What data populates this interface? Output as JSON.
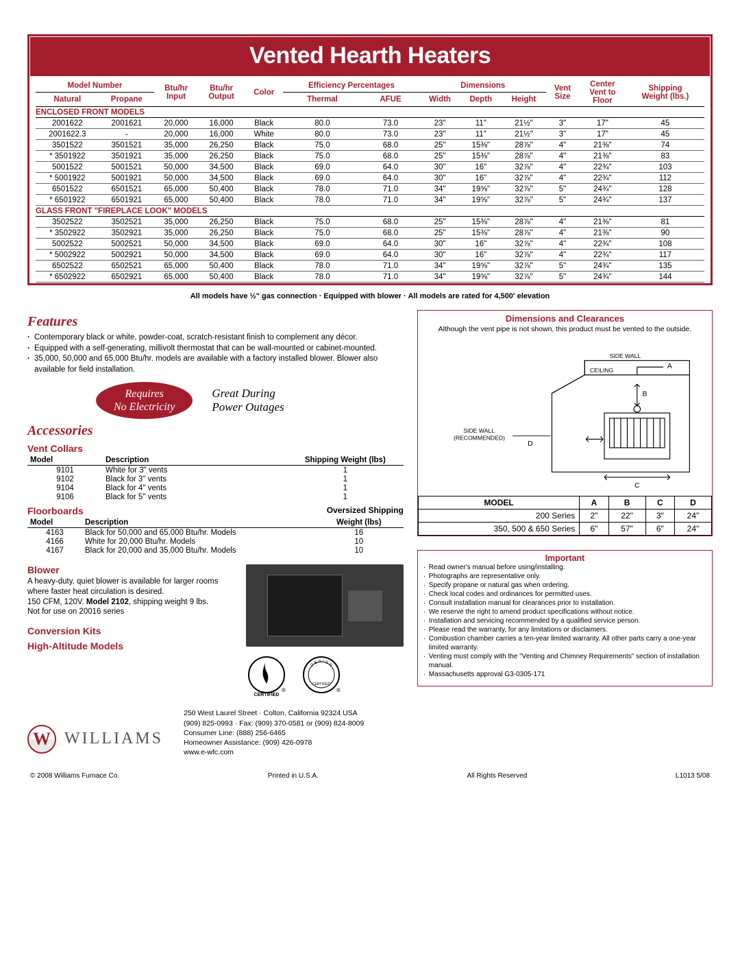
{
  "title": "Vented Hearth Heaters",
  "spec_table": {
    "headers_row1": [
      "Model Number",
      "",
      "Btu/hr",
      "Btu/hr",
      "Color",
      "Efficiency Percentages",
      "",
      "Dimensions",
      "",
      "",
      "Vent",
      "Center Vent to Floor",
      "Shipping Weight (lbs.)"
    ],
    "headers_row2": [
      "Natural",
      "Propane",
      "Input",
      "Output",
      "",
      "Thermal",
      "AFUE",
      "Width",
      "Depth",
      "Height",
      "Size",
      "",
      ""
    ],
    "section1_label": "ENCLOSED FRONT MODELS",
    "section1_rows": [
      [
        "2001622",
        "2001621",
        "20,000",
        "16,000",
        "Black",
        "80.0",
        "73.0",
        "23\"",
        "11\"",
        "21½\"",
        "3\"",
        "17\"",
        "45"
      ],
      [
        "2001622.3",
        "-",
        "20,000",
        "16,000",
        "White",
        "80.0",
        "73.0",
        "23\"",
        "11\"",
        "21½\"",
        "3\"",
        "17\"",
        "45"
      ],
      [
        "3501522",
        "3501521",
        "35,000",
        "26,250",
        "Black",
        "75.0",
        "68.0",
        "25\"",
        "15⅜\"",
        "28⅞\"",
        "4\"",
        "21⅜\"",
        "74"
      ],
      [
        "* 3501922",
        "3501921",
        "35,000",
        "26,250",
        "Black",
        "75.0",
        "68.0",
        "25\"",
        "15⅜\"",
        "28⅞\"",
        "4\"",
        "21⅜\"",
        "83"
      ],
      [
        "5001522",
        "5001521",
        "50,000",
        "34,500",
        "Black",
        "69.0",
        "64.0",
        "30\"",
        "16\"",
        "32⅞\"",
        "4\"",
        "22¾\"",
        "103"
      ],
      [
        "* 5001922",
        "5001921",
        "50,000",
        "34,500",
        "Black",
        "69.0",
        "64.0",
        "30\"",
        "16\"",
        "32⅞\"",
        "4\"",
        "22¾\"",
        "112"
      ],
      [
        "6501522",
        "6501521",
        "65,000",
        "50,400",
        "Black",
        "78.0",
        "71.0",
        "34\"",
        "19⅝\"",
        "32⅞\"",
        "5\"",
        "24¾\"",
        "128"
      ],
      [
        "* 6501922",
        "6501921",
        "65,000",
        "50,400",
        "Black",
        "78.0",
        "71.0",
        "34\"",
        "19⅝\"",
        "32⅞\"",
        "5\"",
        "24¾\"",
        "137"
      ]
    ],
    "section2_label": "GLASS FRONT \"FIREPLACE LOOK\" MODELS",
    "section2_rows": [
      [
        "3502522",
        "3502521",
        "35,000",
        "26,250",
        "Black",
        "75.0",
        "68.0",
        "25\"",
        "15⅜\"",
        "28⅞\"",
        "4\"",
        "21⅜\"",
        "81"
      ],
      [
        "* 3502922",
        "3502921",
        "35,000",
        "26,250",
        "Black",
        "75.0",
        "68.0",
        "25\"",
        "15⅜\"",
        "28⅞\"",
        "4\"",
        "21⅜\"",
        "90"
      ],
      [
        "5002522",
        "5002521",
        "50,000",
        "34,500",
        "Black",
        "69.0",
        "64.0",
        "30\"",
        "16\"",
        "32⅞\"",
        "4\"",
        "22¾\"",
        "108"
      ],
      [
        "* 5002922",
        "5002921",
        "50,000",
        "34,500",
        "Black",
        "69.0",
        "64.0",
        "30\"",
        "16\"",
        "32⅞\"",
        "4\"",
        "22¾\"",
        "117"
      ],
      [
        "6502522",
        "6502521",
        "65,000",
        "50,400",
        "Black",
        "78.0",
        "71.0",
        "34\"",
        "19⅝\"",
        "32⅞\"",
        "5\"",
        "24¾\"",
        "135"
      ],
      [
        "* 6502922",
        "6502921",
        "65,000",
        "50,400",
        "Black",
        "78.0",
        "71.0",
        "34\"",
        "19⅝\"",
        "32⅞\"",
        "5\"",
        "24¾\"",
        "144"
      ]
    ]
  },
  "note_line": "All models have ½\" gas connection   ·   Equipped with blower   ·   All models are rated for 4,500' elevation",
  "features_heading": "Features",
  "features": [
    "Contemporary black or white, powder-coat, scratch-resistant finish to complement any décor.",
    "Equipped with a self-generating, millivolt thermostat that can be wall-mounted or cabinet-mounted.",
    "35,000, 50,000 and 65,000 Btu/hr. models are available with a factory installed blower. Blower also available for field installation."
  ],
  "pill_line1": "Requires",
  "pill_line2": "No Electricity",
  "pill_caption1": "Great During",
  "pill_caption2": "Power Outages",
  "accessories_heading": "Accessories",
  "vent_collars": {
    "title": "Vent Collars",
    "headers": [
      "Model",
      "Description",
      "Shipping Weight (lbs)"
    ],
    "rows": [
      [
        "9101",
        "White for 3\" vents",
        "1"
      ],
      [
        "9102",
        "Black for 3\" vents",
        "1"
      ],
      [
        "9104",
        "Black for 4\" vents",
        "1"
      ],
      [
        "9106",
        "Black for 5\" vents",
        "1"
      ]
    ]
  },
  "floorboards": {
    "title": "Floorboards",
    "hdr_right1": "Oversized Shipping",
    "hdr_right2": "Weight (lbs)",
    "headers": [
      "Model",
      "Description"
    ],
    "rows": [
      [
        "4163",
        "Black for 50,000 and 65,000 Btu/hr. Models",
        "16"
      ],
      [
        "4166",
        "White for 20,000 Btu/hr. Models",
        "10"
      ],
      [
        "4167",
        "Black for 20,000 and 35,000 Btu/hr. Models",
        "10"
      ]
    ]
  },
  "blower": {
    "title": "Blower",
    "p1": "A heavy-duty, quiet blower is available for larger rooms where faster heat circulation is desired.",
    "p2a": "150 CFM, 120V. ",
    "p2b": "Model 2102",
    "p2c": ", shipping weight 9 lbs.",
    "p3": "Not for use on 20016 series"
  },
  "conversion_title": "Conversion Kits",
  "highalt_title": "High-Altitude Models",
  "dimensions": {
    "title": "Dimensions and Clearances",
    "note": "Although the vent pipe is not shown, this product must be vented to the outside.",
    "diagram_labels": {
      "side_wall": "SIDE WALL",
      "ceiling": "CEILING",
      "rec": "SIDE WALL\n(RECOMMENDED)",
      "a": "A",
      "b": "B",
      "c": "C",
      "d": "D"
    }
  },
  "clearance_table": {
    "headers": [
      "MODEL",
      "A",
      "B",
      "C",
      "D"
    ],
    "rows": [
      [
        "200 Series",
        "2\"",
        "22\"",
        "3\"",
        "24\""
      ],
      [
        "350, 500 & 650 Series",
        "6\"",
        "57\"",
        "6\"",
        "24\""
      ]
    ]
  },
  "important": {
    "title": "Important",
    "items": [
      "Read owner's manual before using/installing.",
      "Photographs are representative only.",
      "Specify propane or natural gas when ordering.",
      "Check local codes and ordinances for permitted uses.",
      "Consult installation manual for clearances prior to installation.",
      "We reserve the right to amend product specifications without notice.",
      "Installation and servicing recommended by a qualified service person.",
      "Please read the warranty, for any limitations or disclaimers.",
      "Combustion chamber carries a ten-year limited warranty. All other parts carry a one-year limited warranty.",
      "Venting must comply with the \"Venting and Chimney Requirements\" section of installation manual.",
      "Massachusetts approval G3-0305-171"
    ]
  },
  "brand": {
    "name": "WILLIAMS",
    "addr": [
      "250 West Laurel Street · Colton, California 92324 USA",
      "(909) 825-0993 · Fax: (909) 370-0581 or (909) 824-8009",
      "Consumer Line: (888) 256-6465",
      "Homeowner Assistance: (909) 426-0978",
      "www.e-wfc.com"
    ]
  },
  "bottom": {
    "copyright": "© 2008 Williams Furnace Co.",
    "printed": "Printed in U.S.A.",
    "rights": "All Rights Reserved",
    "code": "L1013    5/08"
  },
  "colors": {
    "brand_red": "#a31e2d"
  }
}
